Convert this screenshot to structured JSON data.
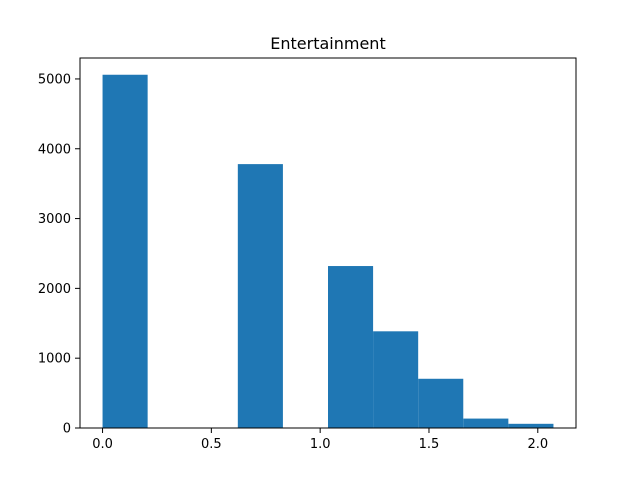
{
  "chart_data": {
    "type": "bar",
    "title": "Entertainment",
    "xlabel": "",
    "ylabel": "",
    "xlim": [
      -0.1036,
      2.1756
    ],
    "ylim": [
      0,
      5300
    ],
    "xticks": [
      0.0,
      0.5,
      1.0,
      1.5,
      2.0
    ],
    "xtick_labels": [
      "0.0",
      "0.5",
      "1.0",
      "1.5",
      "2.0"
    ],
    "yticks": [
      0,
      1000,
      2000,
      3000,
      4000,
      5000
    ],
    "ytick_labels": [
      "0",
      "1000",
      "2000",
      "3000",
      "4000",
      "5000"
    ],
    "grid": false,
    "bin_edges": [
      0.0,
      0.2072,
      0.4144,
      0.6216,
      0.8288,
      1.036,
      1.2432,
      1.4504,
      1.6576,
      1.8648,
      2.072
    ],
    "values": [
      5060,
      0,
      0,
      3780,
      0,
      2320,
      1385,
      705,
      135,
      60
    ],
    "color": "#1f77b4"
  }
}
